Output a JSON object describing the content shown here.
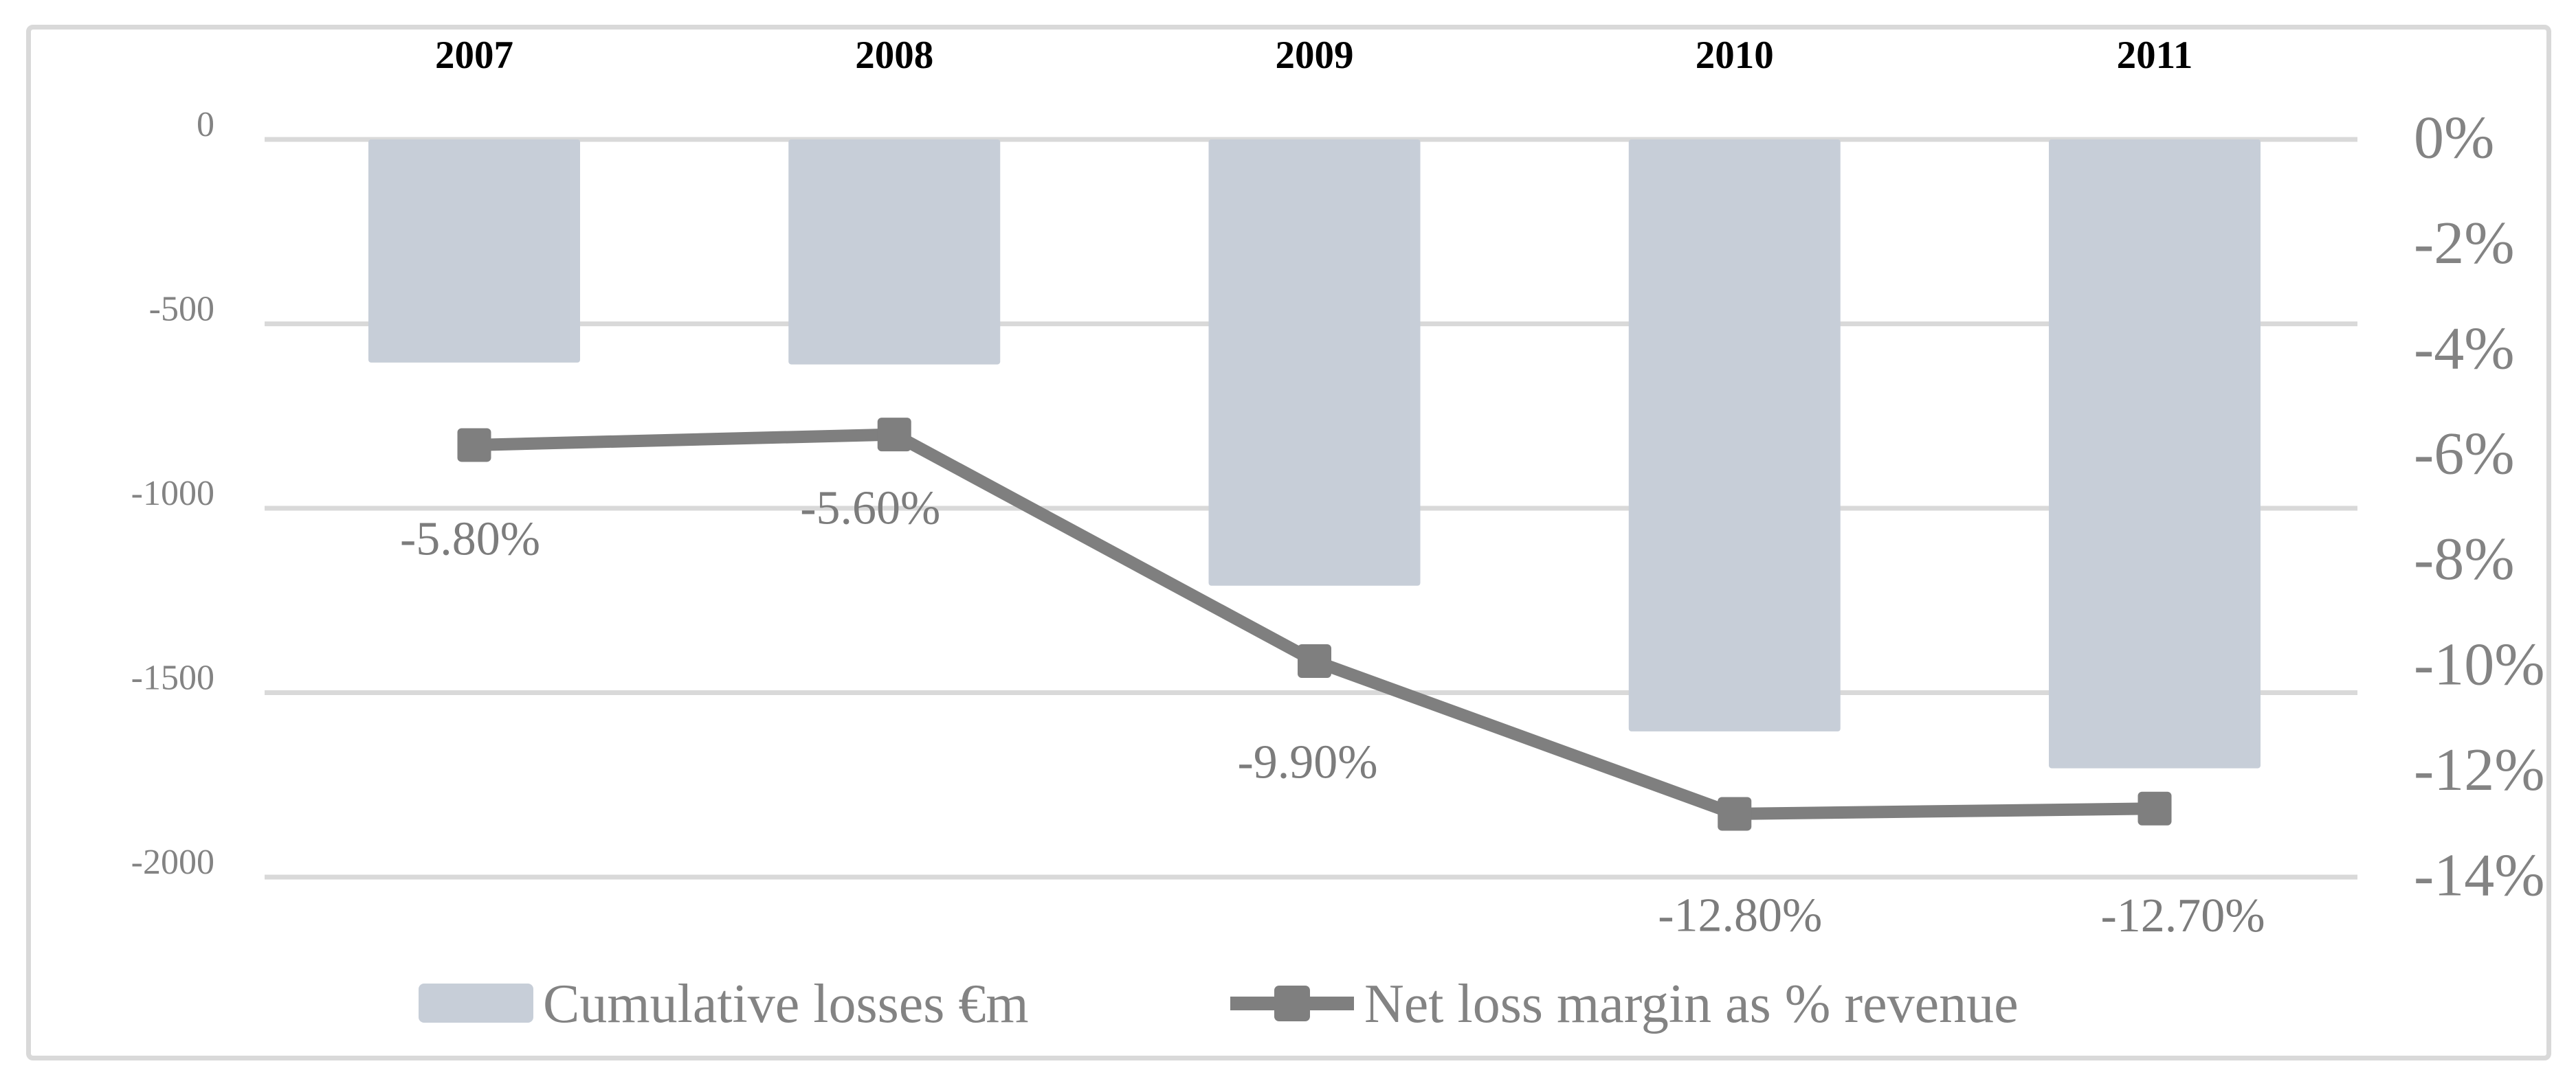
{
  "figure": {
    "background": "#ffffff",
    "border_color": "#d9d9d9"
  },
  "colors": {
    "bar_fill": "#c7ced8",
    "line_and_marker": "#7f7f7f",
    "gridline": "#d9d9d9",
    "axis_text": "#838383",
    "data_label_text": "#7c7c7c",
    "year_label_text": "#000000"
  },
  "chart_data": {
    "type": "bar",
    "subtype": "combo-bar-line-dual-axis",
    "categories": [
      "2007",
      "2008",
      "2009",
      "2010",
      "2011"
    ],
    "series": [
      {
        "name": "Cumulative losses €m",
        "type": "bar",
        "axis": "left",
        "color": "#c7ced8",
        "values": [
          -605,
          -610,
          -1210,
          -1605,
          -1705
        ]
      },
      {
        "name": "Net loss margin as % revenue",
        "type": "line",
        "axis": "right",
        "color": "#7f7f7f",
        "marker": "square",
        "values": [
          -5.8,
          -5.6,
          -9.9,
          -12.8,
          -12.7
        ],
        "data_labels": [
          "-5.80%",
          "-5.60%",
          "-9.90%",
          "-12.80%",
          "-12.70%"
        ]
      }
    ],
    "left_axis": {
      "tick_labels": [
        "0",
        "-500",
        "-1000",
        "-1500",
        "-2000"
      ],
      "tick_values": [
        0,
        -500,
        -1000,
        -1500,
        -2000
      ],
      "ylim": [
        0,
        -2000
      ]
    },
    "right_axis": {
      "tick_labels": [
        "0%",
        "-2%",
        "-4%",
        "-6%",
        "-8%",
        "-10%",
        "-12%",
        "-14%"
      ],
      "tick_values": [
        0,
        -2,
        -4,
        -6,
        -8,
        -10,
        -12,
        -14
      ],
      "ylim": [
        0,
        -14
      ]
    },
    "title": "",
    "xlabel": "",
    "ylabel": "",
    "grid": true,
    "category_labels_position": "top",
    "legend_position": "bottom"
  },
  "legend": {
    "items": [
      {
        "label": "Cumulative losses €m",
        "swatch": "bar"
      },
      {
        "label": "Net loss margin as % revenue",
        "swatch": "line-marker"
      }
    ]
  }
}
